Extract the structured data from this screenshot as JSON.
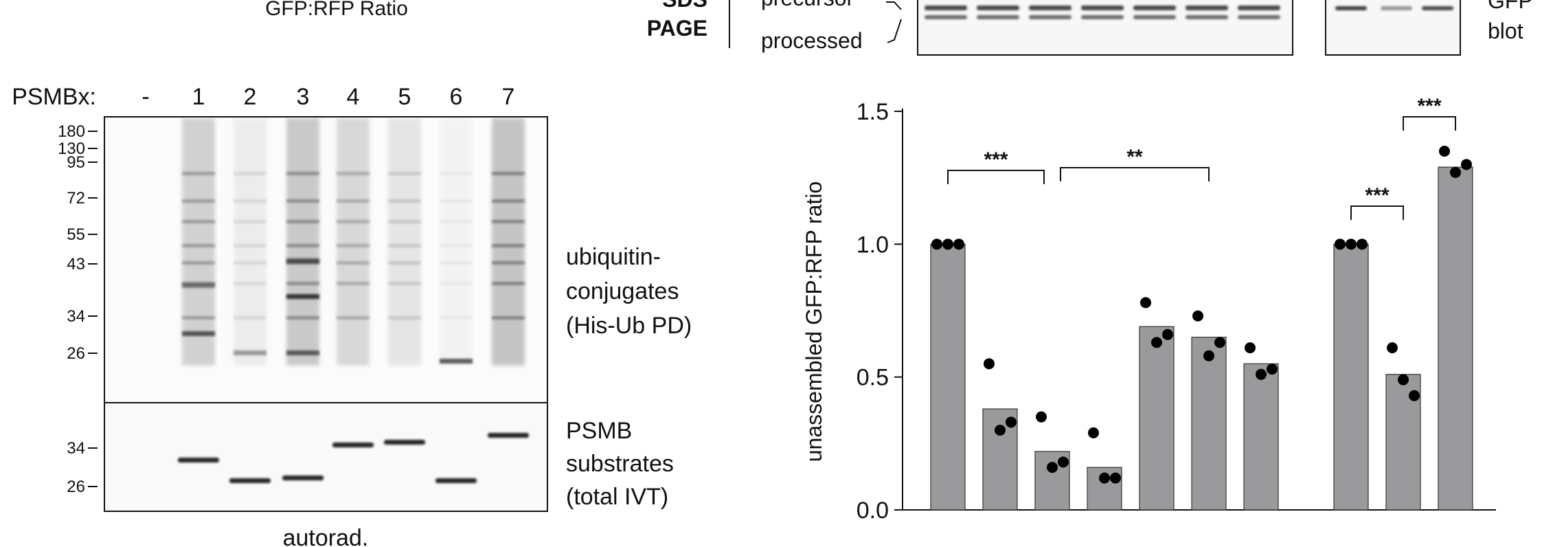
{
  "top_left_caption": "GFP:RFP Ratio",
  "sds_page_label": {
    "line1": "SDS",
    "line2": "PAGE"
  },
  "band_labels": {
    "upper": "precursor",
    "lower": "processed"
  },
  "gfp_blot_label": {
    "line1": "GFP",
    "line2": "blot"
  },
  "gel": {
    "lane_header": "PSMBx:",
    "lanes": [
      "-",
      "1",
      "2",
      "3",
      "4",
      "5",
      "6",
      "7"
    ],
    "markers_upper": [
      "180",
      "130",
      "95",
      "72",
      "55",
      "43",
      "34",
      "26"
    ],
    "markers_lower": [
      "34",
      "26"
    ],
    "upper_panel_label": [
      "ubiquitin-",
      "conjugates",
      "(His-Ub PD)"
    ],
    "lower_panel_label": [
      "PSMB",
      "substrates",
      "(total IVT)"
    ],
    "footer": "autorad."
  },
  "chart_data": {
    "type": "bar",
    "ylabel": "unassembled GFP:RFP ratio",
    "xlabel": "",
    "ylim": [
      0,
      1.5
    ],
    "yticks": [
      "1.5",
      "1.0",
      "0.5",
      "0.0"
    ],
    "ytick_values": [
      1.5,
      1.0,
      0.5,
      0.0
    ],
    "group1": {
      "bars": [
        1.0,
        0.38,
        0.22,
        0.16,
        0.69,
        0.65,
        0.55
      ],
      "points": [
        [
          1.0,
          1.0,
          1.0
        ],
        [
          0.55,
          0.3,
          0.33
        ],
        [
          0.35,
          0.16,
          0.18
        ],
        [
          0.29,
          0.12,
          0.12
        ],
        [
          0.78,
          0.63,
          0.66
        ],
        [
          0.73,
          0.58,
          0.63
        ],
        [
          0.61,
          0.51,
          0.53
        ]
      ]
    },
    "group2": {
      "bars": [
        1.0,
        0.51,
        1.29
      ],
      "points": [
        [
          1.0,
          1.0,
          1.0
        ],
        [
          0.61,
          0.49,
          0.43
        ],
        [
          1.35,
          1.27,
          1.3
        ]
      ]
    },
    "significance": [
      {
        "label": "***",
        "from_bar": 0,
        "to_bar": 2,
        "group": 1
      },
      {
        "label": "**",
        "from_bar": 2,
        "to_bar": 5,
        "group": 1
      },
      {
        "label": "***",
        "from_bar": 0,
        "to_bar": 1,
        "group": 2
      },
      {
        "label": "***",
        "from_bar": 1,
        "to_bar": 2,
        "group": 2
      }
    ],
    "colors": {
      "bar": "#9a9a9c",
      "point": "#000000"
    }
  }
}
